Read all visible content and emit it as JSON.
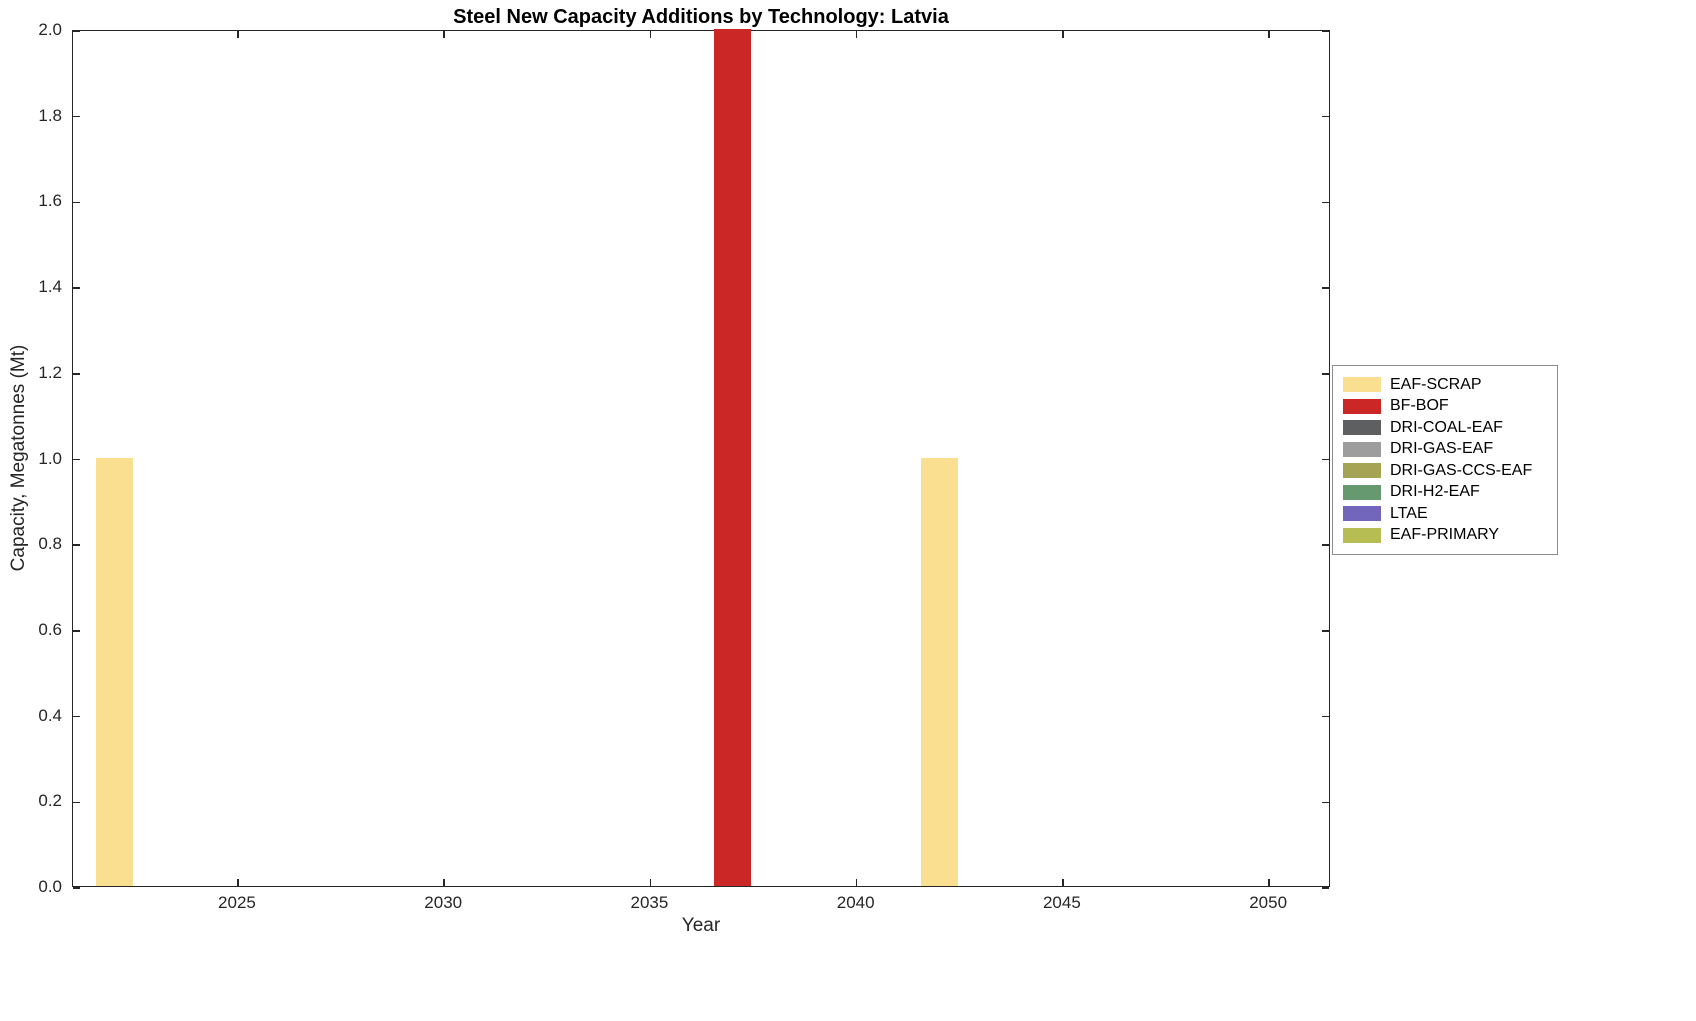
{
  "chart_data": {
    "type": "bar",
    "title": "Steel New Capacity Additions by Technology: Latvia",
    "xlabel": "Year",
    "ylabel": "Capacity, Megatonnes (Mt)",
    "xlim": [
      2021,
      2051.5
    ],
    "ylim": [
      0,
      2
    ],
    "xticks": [
      2025,
      2030,
      2035,
      2040,
      2045,
      2050
    ],
    "yticks": [
      0.0,
      0.2,
      0.4,
      0.6,
      0.8,
      1.0,
      1.2,
      1.4,
      1.6,
      1.8,
      2.0
    ],
    "grid": false,
    "legend_position": "right-outside",
    "bar_width_years": 0.9,
    "series": [
      {
        "name": "EAF-PRIMARY",
        "color": "#b6bd52",
        "points": []
      },
      {
        "name": "LTAE",
        "color": "#7166bb",
        "points": []
      },
      {
        "name": "DRI-H2-EAF",
        "color": "#679970",
        "points": []
      },
      {
        "name": "DRI-GAS-CCS-EAF",
        "color": "#a4a454",
        "points": []
      },
      {
        "name": "DRI-GAS-EAF",
        "color": "#9d9d9d",
        "points": []
      },
      {
        "name": "DRI-COAL-EAF",
        "color": "#5e5f61",
        "points": []
      },
      {
        "name": "BF-BOF",
        "color": "#cb2727",
        "points": [
          {
            "x": 2037,
            "y": 2.0
          }
        ]
      },
      {
        "name": "EAF-SCRAP",
        "color": "#fbdf90",
        "points": [
          {
            "x": 2022,
            "y": 1.0
          },
          {
            "x": 2042,
            "y": 1.0
          }
        ]
      }
    ]
  }
}
